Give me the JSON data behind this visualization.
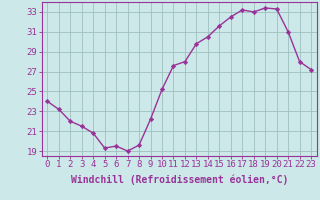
{
  "x": [
    0,
    1,
    2,
    3,
    4,
    5,
    6,
    7,
    8,
    9,
    10,
    11,
    12,
    13,
    14,
    15,
    16,
    17,
    18,
    19,
    20,
    21,
    22,
    23
  ],
  "y": [
    24.0,
    23.2,
    22.0,
    21.5,
    20.8,
    19.3,
    19.5,
    19.0,
    19.6,
    22.2,
    25.2,
    27.6,
    28.0,
    29.8,
    30.5,
    31.6,
    32.5,
    33.2,
    33.0,
    33.4,
    33.3,
    31.0,
    28.0,
    27.2
  ],
  "line_color": "#993399",
  "marker": "D",
  "marker_size": 2.2,
  "bg_color": "#cce8e8",
  "grid_color": "#9fbfbf",
  "xlabel": "Windchill (Refroidissement éolien,°C)",
  "xlabel_fontsize": 7,
  "tick_fontsize": 6.5,
  "ylim": [
    18.5,
    34.0
  ],
  "yticks": [
    19,
    21,
    23,
    25,
    27,
    29,
    31,
    33
  ],
  "xticks": [
    0,
    1,
    2,
    3,
    4,
    5,
    6,
    7,
    8,
    9,
    10,
    11,
    12,
    13,
    14,
    15,
    16,
    17,
    18,
    19,
    20,
    21,
    22,
    23
  ],
  "line_width": 1.0
}
